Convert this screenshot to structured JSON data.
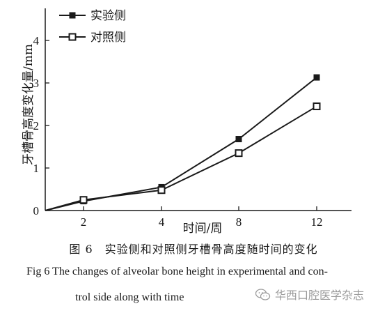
{
  "chart_data": {
    "type": "line",
    "categories": [
      "2",
      "4",
      "8",
      "12"
    ],
    "xlabel": "时间/周",
    "ylabel": "牙槽骨高度变化量/mm",
    "ylim": [
      0,
      4.5
    ],
    "yticks": [
      0,
      1,
      2,
      3,
      4
    ],
    "series": [
      {
        "name": "实验侧",
        "marker": "filled-square",
        "values": [
          0.22,
          0.55,
          1.68,
          3.13
        ]
      },
      {
        "name": "对照侧",
        "marker": "open-square",
        "values": [
          0.25,
          0.48,
          1.35,
          2.45
        ]
      }
    ],
    "origin_value": 0,
    "legend": "top-left",
    "grid": false,
    "colors": {
      "line": "#1a1a1a"
    }
  },
  "caption": {
    "chinese": "图 6　实验侧和对照侧牙槽骨高度随时间的变化",
    "english_line1": "Fig 6    The changes of alveolar bone height in experimental and con-",
    "english_line2": "trol side along with time"
  },
  "watermark": {
    "text": "华西口腔医学杂志",
    "icon": "wechat-icon"
  }
}
